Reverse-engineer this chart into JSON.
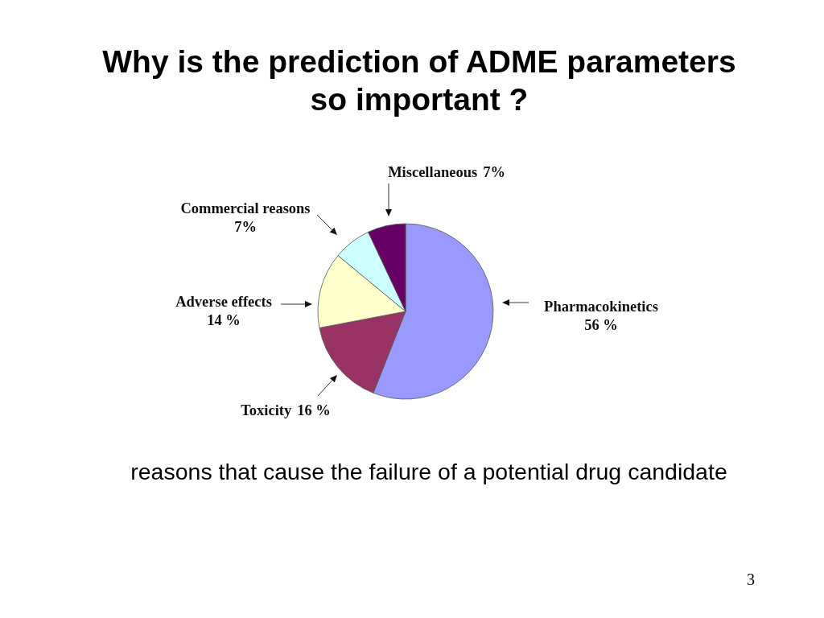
{
  "chart_data": {
    "type": "pie",
    "title": "Why is the prediction of ADME parameters so important ?",
    "categories": [
      "Pharmacokinetics",
      "Toxicity",
      "Adverse effects",
      "Commercial reasons",
      "Miscellaneous"
    ],
    "values": [
      56,
      16,
      14,
      7,
      7
    ],
    "colors": [
      "#9999ff",
      "#993366",
      "#ffffcc",
      "#ccffff",
      "#660066"
    ],
    "value_labels": [
      "56 %",
      "16 %",
      "14 %",
      "7%",
      "7%"
    ],
    "annotations": [
      "reasons that cause the failure of a potential drug candidate",
      "3"
    ]
  }
}
